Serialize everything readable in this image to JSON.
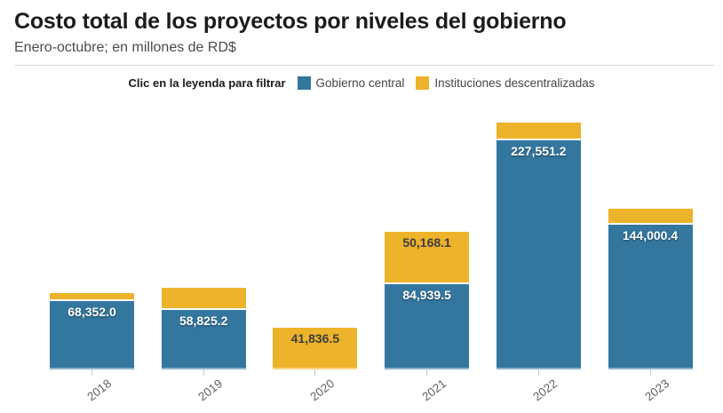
{
  "header": {
    "title": "Costo total de los proyectos por niveles del gobierno",
    "subtitle": "Enero-octubre; en millones de RD$"
  },
  "legend": {
    "note": "Clic en la leyenda para filtrar",
    "items": [
      {
        "id": "gobierno-central",
        "label": "Gobierno central",
        "color": "#33779f"
      },
      {
        "id": "instituciones-descentralizadas",
        "label": "Instituciones descentralizadas",
        "color": "#edb32a"
      }
    ]
  },
  "chart_data": {
    "type": "bar",
    "stacked": true,
    "title": "Costo total de los proyectos por niveles del gobierno",
    "subtitle": "Enero-octubre; en millones de RD$",
    "categories": [
      "2018",
      "2019",
      "2020",
      "2021",
      "2022",
      "2023"
    ],
    "series": [
      {
        "name": "Gobierno central",
        "color": "#33779f",
        "values": [
          68352.0,
          58825.2,
          0,
          84939.5,
          227551.2,
          144000.4
        ],
        "display_labels": [
          "68,352.0",
          "58,825.2",
          "",
          "84,939.5",
          "227,551.2",
          "144,000.4"
        ],
        "label_style": "light"
      },
      {
        "name": "Instituciones descentralizadas",
        "color": "#edb32a",
        "values": [
          5400,
          20600,
          41836.5,
          50168.1,
          15800,
          14000
        ],
        "values_estimated": [
          true,
          true,
          false,
          false,
          true,
          true
        ],
        "display_labels": [
          "",
          "",
          "41,836.5",
          "50,168.1",
          "",
          ""
        ],
        "label_style": "dark"
      }
    ],
    "xlabel": "",
    "ylabel": "",
    "ylim": [
      0,
      261000
    ],
    "grid": false,
    "legend_position": "top"
  }
}
